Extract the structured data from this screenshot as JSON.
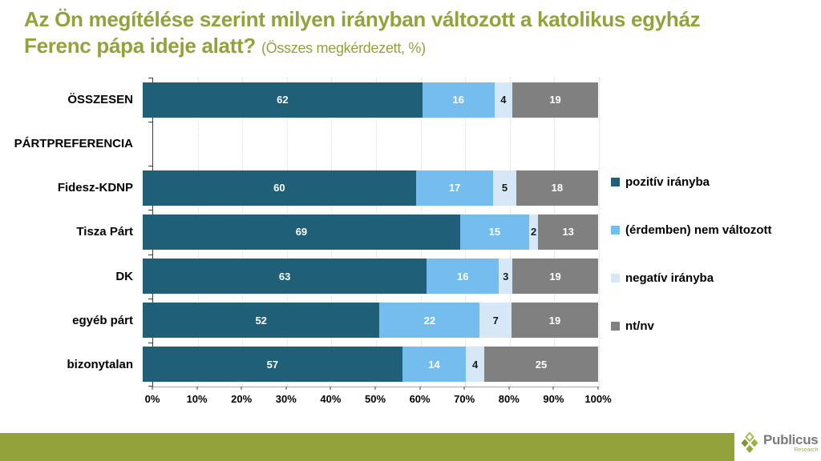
{
  "title": {
    "line1": "Az Ön megítélése szerint milyen irányban változott a katolikus egyház",
    "line2": "Ferenc pápa ideje alatt?",
    "subtitle": "(Összes megkérdezett, %)"
  },
  "colors": {
    "accent_green": "#94A23C",
    "series_positive": "#1F6078",
    "series_nochange": "#76BDEF",
    "series_negative": "#D6E8F8",
    "series_ntnv": "#808080",
    "axis_line": "#404040",
    "gridline": "#D9D9D9"
  },
  "chart_data": {
    "type": "bar",
    "stacked": true,
    "orientation": "horizontal",
    "grid": "vertical-dotted",
    "legend_position": "right",
    "xlim": [
      0,
      100
    ],
    "x_tick_labels": [
      "0%",
      "10%",
      "20%",
      "30%",
      "40%",
      "50%",
      "60%",
      "70%",
      "80%",
      "90%",
      "100%"
    ],
    "categories": [
      "ÖSSZESEN",
      "PÁRTPREFERENCIA",
      "Fidesz-KDNP",
      "Tisza Párt",
      "DK",
      "egyéb párt",
      "bizonytalan"
    ],
    "series": [
      {
        "name": "pozitív irányba",
        "color": "#1F6078",
        "label_color": "#FFFFFF",
        "values": [
          62,
          null,
          60,
          69,
          63,
          52,
          57
        ]
      },
      {
        "name": "(érdemben) nem változott",
        "color": "#76BDEF",
        "label_color": "#FFFFFF",
        "values": [
          16,
          null,
          17,
          15,
          16,
          22,
          14
        ]
      },
      {
        "name": "negatív irányba",
        "color": "#D6E8F8",
        "label_color": "#1A1A1A",
        "values": [
          4,
          null,
          5,
          2,
          3,
          7,
          4
        ]
      },
      {
        "name": "nt/nv",
        "color": "#808080",
        "label_color": "#FFFFFF",
        "values": [
          19,
          null,
          18,
          13,
          19,
          19,
          25
        ]
      }
    ]
  },
  "footer": {
    "brand": "Publicus",
    "brand_sub": "Research"
  }
}
